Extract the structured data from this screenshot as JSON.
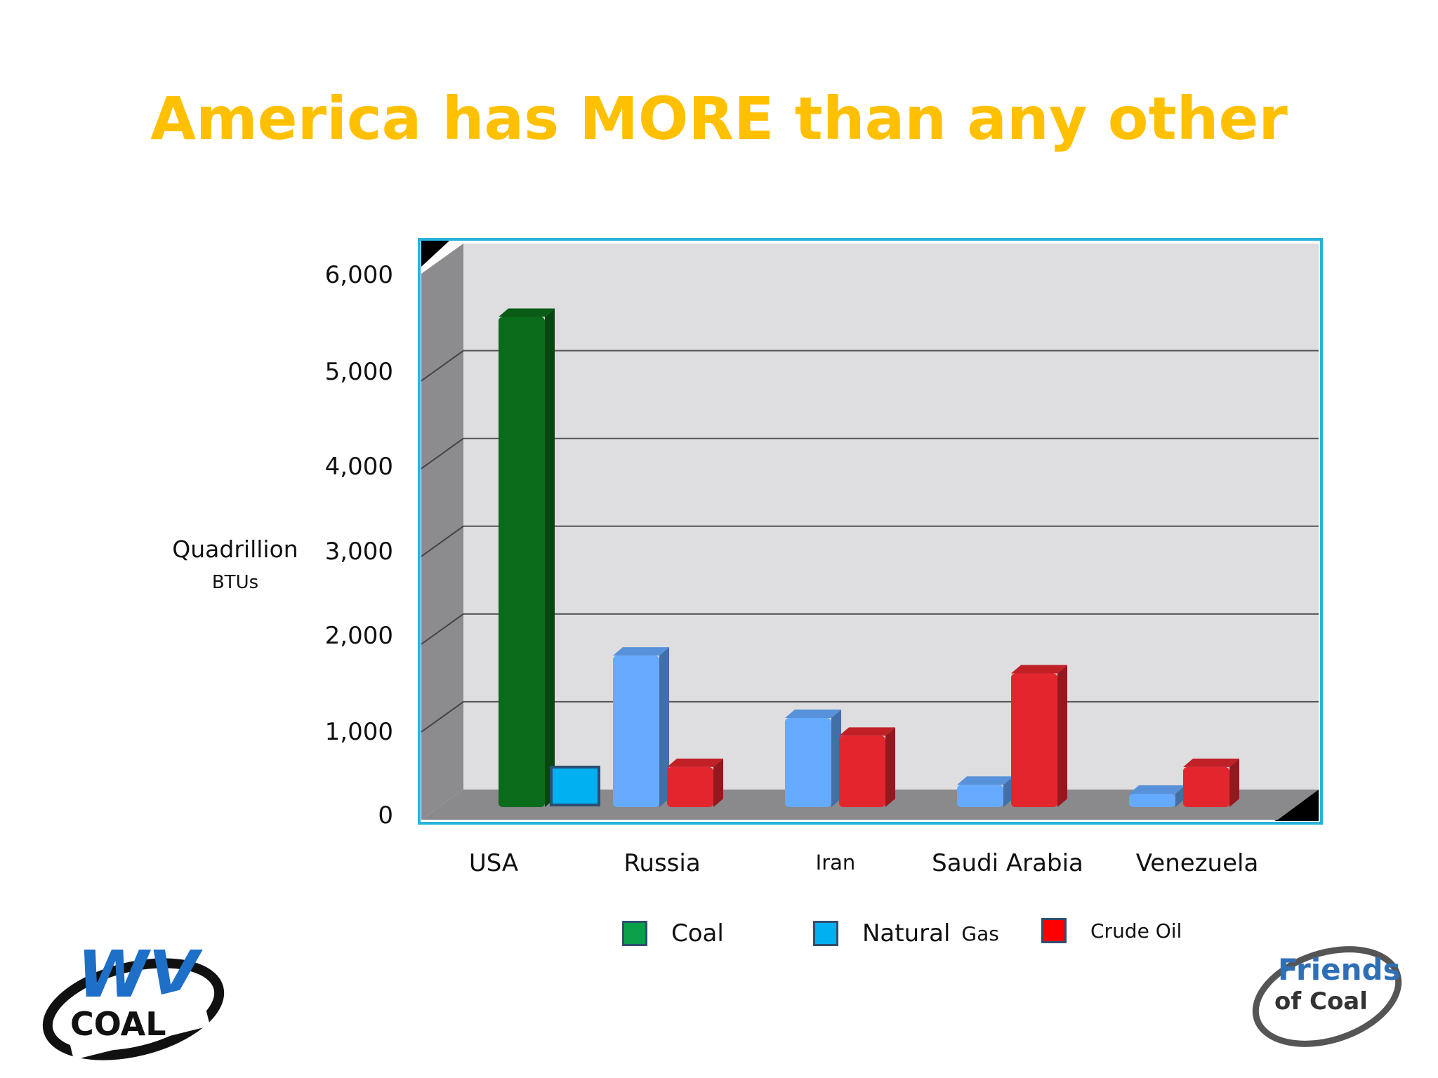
{
  "slide": {
    "title": "America has MORE than any other"
  },
  "chart_data": {
    "type": "bar",
    "title": "",
    "ylabel": "Quadrillion BTUs",
    "ylabel_line1": "Quadrillion",
    "ylabel_line2": "BTUs",
    "ylim": [
      0,
      6000
    ],
    "yticks": [
      "6,000",
      "5,000",
      "4,000",
      "3,000",
      "2,000",
      "1,000",
      "0"
    ],
    "categories": [
      "USA",
      "Russia",
      "Iran",
      "Saudi Arabia",
      "Venezuela"
    ],
    "series": [
      {
        "name": "Coal",
        "color": "#0a6b1a",
        "values": [
          5500,
          null,
          null,
          null,
          null
        ]
      },
      {
        "name": "Natural Gas",
        "color": "#66aaff",
        "values": [
          350,
          1700,
          1000,
          250,
          150
        ]
      },
      {
        "name": "Crude Oil",
        "color": "#e3262e",
        "values": [
          null,
          450,
          800,
          1500,
          450
        ]
      }
    ],
    "legend": [
      {
        "label_main": "Coal",
        "label_small": "",
        "color": "#0aa04a"
      },
      {
        "label_main": "Natural",
        "label_small": "Gas",
        "color": "#00b0f0"
      },
      {
        "label_main": "",
        "label_small": "Crude Oil",
        "color": "#ff0000"
      }
    ],
    "grid": true,
    "legend_position": "bottom"
  },
  "logos": {
    "left": {
      "text": "WV",
      "sub": "COAL"
    },
    "right": {
      "line1": "Friends",
      "line2": "of Coal"
    }
  }
}
